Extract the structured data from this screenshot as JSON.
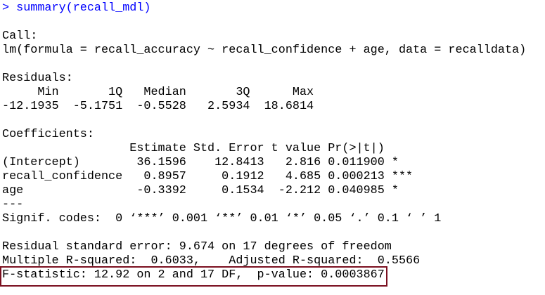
{
  "colors": {
    "command": "#0000ff",
    "output": "#000000",
    "highlight_box": "#7b1020"
  },
  "command": "> summary(recall_mdl)",
  "call": {
    "label": "Call:",
    "formula": "lm(formula = recall_accuracy ~ recall_confidence + age, data = recalldata)"
  },
  "residuals": {
    "label": "Residuals:",
    "header": "     Min       1Q   Median       3Q      Max ",
    "values": "-12.1935  -5.1751  -0.5528   2.5934  18.6814 "
  },
  "coefficients": {
    "label": "Coefficients:",
    "header": "                  Estimate Std. Error t value Pr(>|t|)    ",
    "rows": [
      "(Intercept)        36.1596    12.8413   2.816 0.011900 *  ",
      "recall_confidence   0.8957     0.1912   4.685 0.000213 ***",
      "age                -0.3392     0.1534  -2.212 0.040985 *  "
    ],
    "separator": "---",
    "signif_codes": "Signif. codes:  0 ‘***’ 0.001 ‘**’ 0.01 ‘*’ 0.05 ‘.’ 0.1 ‘ ’ 1"
  },
  "fit": {
    "residual_se": "Residual standard error: 9.674 on 17 degrees of freedom",
    "r_squared": "Multiple R-squared:  0.6033,\tAdjusted R-squared:  0.5566 ",
    "f_statistic": "F-statistic: 12.92 on 2 and 17 DF,  p-value: 0.0003867"
  }
}
